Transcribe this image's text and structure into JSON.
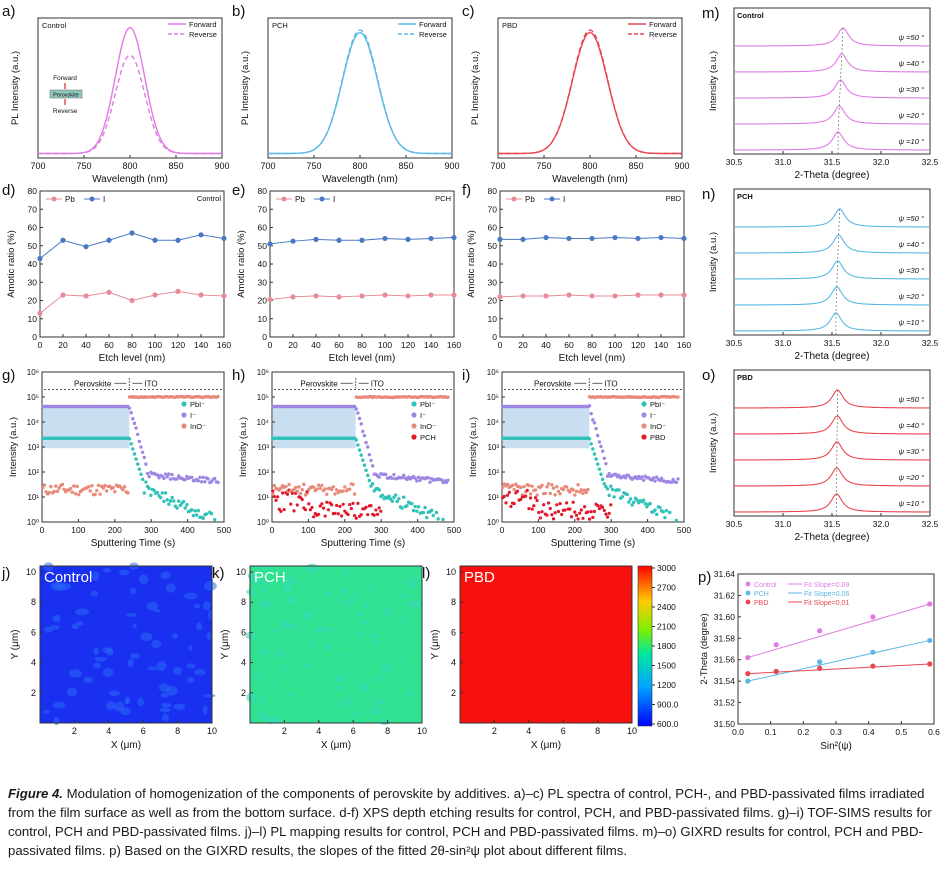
{
  "figure": {
    "caption_lead": "Figure 4.",
    "caption_body": " Modulation of homogenization of the components of perovskite by additives. a)–c) PL spectra of control, PCH-, and PBD-passivated films irradiated from the film surface as well as from the bottom surface. d-f) XPS depth etching results for control, PCH, and PBD-passivated films. g)–i) TOF-SIMS results for control, PCH and PBD-passivated films. j)–l) PL mapping results for control, PCH and PBD-passivated films. m)–o) GIXRD results for control, PCH and PBD-passivated films. p) Based on the GIXRD results, the slopes of the fitted 2θ-sin²ψ plot about different films."
  },
  "colors": {
    "control": "#e07be6",
    "pch": "#5bb8e6",
    "pbd": "#e8474f",
    "pb": "#e58c98",
    "i": "#4a78c4",
    "pbi": "#2ec2b8",
    "iminus": "#9d87e3",
    "ino": "#e88a7a",
    "additive": "#e0182a",
    "box": "#bcd7ee"
  },
  "chart_data": [
    {
      "id": "a",
      "type": "line",
      "panel_label": "a)",
      "tag": "Control",
      "color": "control",
      "xlabel": "Wavelength (nm)",
      "ylabel": "PL Intensity (a.u.)",
      "xlim": [
        700,
        900
      ],
      "xticks": [
        "700",
        "750",
        "800",
        "850",
        "900"
      ],
      "legend": [
        "Forward",
        "Reverse"
      ],
      "peak": 800,
      "sigma": 16,
      "amp_forward": 1.0,
      "amp_reverse": 0.78,
      "inset": {
        "top": "Forward",
        "mid": "Perovskite",
        "bottom": "Reverse"
      }
    },
    {
      "id": "b",
      "type": "line",
      "panel_label": "b)",
      "tag": "PCH",
      "color": "pch",
      "xlabel": "Wavelength (nm)",
      "ylabel": "PL Intensity (a.u.)",
      "xlim": [
        700,
        900
      ],
      "xticks": [
        "700",
        "750",
        "800",
        "850",
        "900"
      ],
      "legend": [
        "Forward",
        "Reverse"
      ],
      "peak": 800,
      "sigma": 19,
      "amp_forward": 0.96,
      "amp_reverse": 0.98
    },
    {
      "id": "c",
      "type": "line",
      "panel_label": "c)",
      "tag": "PBD",
      "color": "pbd",
      "xlabel": "Wavelength (nm)",
      "ylabel": "PL Intensity (a.u.)",
      "xlim": [
        700,
        900
      ],
      "xticks": [
        "700",
        "750",
        "800",
        "850",
        "900"
      ],
      "legend": [
        "Forward",
        "Reverse"
      ],
      "peak": 800,
      "sigma": 19,
      "amp_forward": 0.96,
      "amp_reverse": 0.98
    },
    {
      "id": "d",
      "type": "line",
      "panel_label": "d)",
      "tag": "Control",
      "xlabel": "Etch level (nm)",
      "ylabel": "Amotic ratio (%)",
      "xlim": [
        0,
        160
      ],
      "ylim": [
        0,
        80
      ],
      "xticks": [
        "0",
        "20",
        "40",
        "60",
        "80",
        "100",
        "120",
        "140",
        "160"
      ],
      "yticks": [
        "0",
        "10",
        "20",
        "30",
        "40",
        "50",
        "60",
        "70",
        "80"
      ],
      "x": [
        0,
        20,
        40,
        60,
        80,
        100,
        120,
        140,
        160
      ],
      "series": [
        {
          "name": "Pb",
          "color": "pb",
          "values": [
            13,
            23,
            22.5,
            24.5,
            20,
            23,
            25,
            23,
            22.5
          ]
        },
        {
          "name": "I",
          "color": "i",
          "values": [
            43,
            53,
            49.5,
            53,
            57,
            53,
            53,
            56,
            54
          ]
        }
      ]
    },
    {
      "id": "e",
      "type": "line",
      "panel_label": "e)",
      "tag": "PCH",
      "xlabel": "Etch level (nm)",
      "ylabel": "Amotic ratio (%)",
      "xlim": [
        0,
        160
      ],
      "ylim": [
        0,
        80
      ],
      "xticks": [
        "0",
        "20",
        "40",
        "60",
        "80",
        "100",
        "120",
        "140",
        "160"
      ],
      "yticks": [
        "0",
        "10",
        "20",
        "30",
        "40",
        "50",
        "60",
        "70",
        "80"
      ],
      "x": [
        0,
        20,
        40,
        60,
        80,
        100,
        120,
        140,
        160
      ],
      "series": [
        {
          "name": "Pb",
          "color": "pb",
          "values": [
            20.5,
            22,
            22.5,
            22,
            22.5,
            23,
            22.5,
            23,
            23
          ]
        },
        {
          "name": "I",
          "color": "i",
          "values": [
            51,
            52.5,
            53.5,
            53,
            53,
            54,
            53.5,
            54,
            54.5
          ]
        }
      ]
    },
    {
      "id": "f",
      "type": "line",
      "panel_label": "f)",
      "tag": "PBD",
      "xlabel": "Etch level (nm)",
      "ylabel": "Amotic ratio (%)",
      "xlim": [
        0,
        160
      ],
      "ylim": [
        0,
        80
      ],
      "xticks": [
        "0",
        "20",
        "40",
        "60",
        "80",
        "100",
        "120",
        "140",
        "160"
      ],
      "yticks": [
        "0",
        "10",
        "20",
        "30",
        "40",
        "50",
        "60",
        "70",
        "80"
      ],
      "x": [
        0,
        20,
        40,
        60,
        80,
        100,
        120,
        140,
        160
      ],
      "series": [
        {
          "name": "Pb",
          "color": "pb",
          "values": [
            22,
            22.5,
            22.5,
            23,
            22.5,
            22.5,
            23,
            23,
            23
          ]
        },
        {
          "name": "I",
          "color": "i",
          "values": [
            53.5,
            53.5,
            54.5,
            54,
            54,
            54.5,
            54,
            54.5,
            54
          ]
        }
      ]
    },
    {
      "id": "g",
      "type": "scatter",
      "panel_label": "g)",
      "xlabel": "Sputtering Time (s)",
      "ylabel": "Intensity (a.u.)",
      "xlim": [
        0,
        500
      ],
      "xticks": [
        "0",
        "100",
        "200",
        "300",
        "400",
        "500"
      ],
      "ylog": [
        0,
        6
      ],
      "yticks": [
        "10⁰",
        "10¹",
        "10²",
        "10³",
        "10⁴",
        "10⁵",
        "10⁶"
      ],
      "region_left": "Perovskite",
      "region_right": "ITO",
      "boundary": 240,
      "series": [
        {
          "name": "PbI⁻",
          "color": "pbi"
        },
        {
          "name": "I⁻",
          "color": "iminus"
        },
        {
          "name": "InO⁻",
          "color": "ino"
        }
      ]
    },
    {
      "id": "h",
      "type": "scatter",
      "panel_label": "h)",
      "xlabel": "Sputtering Time (s)",
      "ylabel": "Intensity (a.u.)",
      "xlim": [
        0,
        500
      ],
      "xticks": [
        "0",
        "100",
        "200",
        "300",
        "400",
        "500"
      ],
      "ylog": [
        0,
        6
      ],
      "yticks": [
        "10⁰",
        "10¹",
        "10²",
        "10³",
        "10⁴",
        "10⁵",
        "10⁶"
      ],
      "region_left": "Perovskite",
      "region_right": "ITO",
      "boundary": 230,
      "series": [
        {
          "name": "PbI⁻",
          "color": "pbi"
        },
        {
          "name": "I⁻",
          "color": "iminus"
        },
        {
          "name": "InO⁻",
          "color": "ino"
        },
        {
          "name": "PCH",
          "color": "additive"
        }
      ]
    },
    {
      "id": "i",
      "type": "scatter",
      "panel_label": "i)",
      "xlabel": "Sputtering Time (s)",
      "ylabel": "Intensity (a.u.)",
      "xlim": [
        0,
        500
      ],
      "xticks": [
        "0",
        "100",
        "200",
        "300",
        "400",
        "500"
      ],
      "ylog": [
        0,
        6
      ],
      "yticks": [
        "10⁰",
        "10¹",
        "10²",
        "10³",
        "10⁴",
        "10⁵",
        "10⁶"
      ],
      "region_left": "Perovskite",
      "region_right": "ITO",
      "boundary": 240,
      "series": [
        {
          "name": "PbI⁻",
          "color": "pbi"
        },
        {
          "name": "I⁻",
          "color": "iminus"
        },
        {
          "name": "InO⁻",
          "color": "ino"
        },
        {
          "name": "PBD",
          "color": "additive"
        }
      ]
    },
    {
      "id": "j",
      "type": "heatmap",
      "panel_label": "j)",
      "tag": "Control",
      "xlabel": "X (μm)",
      "ylabel": "Y (μm)",
      "xticks": [
        "2",
        "4",
        "6",
        "8",
        "10"
      ],
      "yticks": [
        "2",
        "4",
        "6",
        "8",
        "10"
      ],
      "base": "#1a30f0",
      "spot": "#2a6af6"
    },
    {
      "id": "k",
      "type": "heatmap",
      "panel_label": "k)",
      "tag": "PCH",
      "xlabel": "X (μm)",
      "ylabel": "Y (μm)",
      "xticks": [
        "2",
        "4",
        "6",
        "8",
        "10"
      ],
      "yticks": [
        "2",
        "4",
        "6",
        "8",
        "10"
      ],
      "base": "#2fe292",
      "spot": "#3ad9b8"
    },
    {
      "id": "l",
      "type": "heatmap",
      "panel_label": "l)",
      "tag": "PBD",
      "xlabel": "X (μm)",
      "ylabel": "Y (μm)",
      "xticks": [
        "2",
        "4",
        "6",
        "8",
        "10"
      ],
      "yticks": [
        "2",
        "4",
        "6",
        "8",
        "10"
      ],
      "base": "#f8100e",
      "spot": "#f8100e"
    },
    {
      "id": "colorbar",
      "type": "colorbar",
      "ticks": [
        "3000",
        "2700",
        "2400",
        "2100",
        "1800",
        "1500",
        "1200",
        "900.0",
        "600.0"
      ]
    },
    {
      "id": "m",
      "type": "line",
      "panel_label": "m)",
      "tag": "Control",
      "color": "control",
      "xlabel": "2-Theta (degree)",
      "ylabel": "Intensity (a.u.)",
      "xlim": [
        30.5,
        32.5
      ],
      "xticks": [
        "30.5",
        "31.0",
        "31.5",
        "32.0",
        "32.5"
      ],
      "curves": [
        "ψ =50 °",
        "ψ =40 °",
        "ψ =30 °",
        "ψ =20 °",
        "ψ =10 °"
      ],
      "peaks": [
        31.612,
        31.6,
        31.587,
        31.575,
        31.562
      ]
    },
    {
      "id": "n",
      "type": "line",
      "panel_label": "n)",
      "tag": "PCH",
      "color": "pch",
      "xlabel": "2-Theta (degree)",
      "ylabel": "Intensity (a.u.)",
      "xlim": [
        30.5,
        32.5
      ],
      "xticks": [
        "30.5",
        "31.0",
        "31.5",
        "32.0",
        "32.5"
      ],
      "curves": [
        "ψ =50 °",
        "ψ =40 °",
        "ψ =30 °",
        "ψ =20 °",
        "ψ =10 °"
      ],
      "peaks": [
        31.578,
        31.568,
        31.558,
        31.549,
        31.54
      ]
    },
    {
      "id": "o",
      "type": "line",
      "panel_label": "o)",
      "tag": "PBD",
      "color": "pbd",
      "xlabel": "2-Theta (degree)",
      "ylabel": "Intensity (a.u.)",
      "xlim": [
        30.5,
        32.5
      ],
      "xticks": [
        "30.5",
        "31.0",
        "31.5",
        "32.0",
        "32.5"
      ],
      "curves": [
        "ψ =50 °",
        "ψ =40 °",
        "ψ =30 °",
        "ψ =20 °",
        "ψ =10 °"
      ],
      "peaks": [
        31.556,
        31.554,
        31.551,
        31.549,
        31.547
      ]
    },
    {
      "id": "p",
      "type": "scatter",
      "panel_label": "p)",
      "xlabel": "Sin²(ψ)",
      "ylabel": "2-Theta (degree)",
      "xlim": [
        0,
        0.6
      ],
      "ylim": [
        31.5,
        31.64
      ],
      "xticks": [
        "0.0",
        "0.1",
        "0.2",
        "0.3",
        "0.4",
        "0.5",
        "0.6"
      ],
      "yticks": [
        "31.50",
        "31.52",
        "31.54",
        "31.56",
        "31.58",
        "31.60",
        "31.62",
        "31.64"
      ],
      "x": [
        0.03,
        0.117,
        0.25,
        0.413,
        0.587
      ],
      "series": [
        {
          "name": "Control",
          "fit": "Fit  Slope=0.09",
          "color": "control",
          "values": [
            31.562,
            31.574,
            31.587,
            31.6,
            31.612
          ]
        },
        {
          "name": "PCH",
          "fit": "Fit  Slope=0.06",
          "color": "pch",
          "values": [
            31.54,
            31.549,
            31.558,
            31.567,
            31.578
          ]
        },
        {
          "name": "PBD",
          "fit": "Fit  Slope=0.01",
          "color": "pbd",
          "values": [
            31.547,
            31.549,
            31.552,
            31.554,
            31.556
          ]
        }
      ]
    }
  ]
}
